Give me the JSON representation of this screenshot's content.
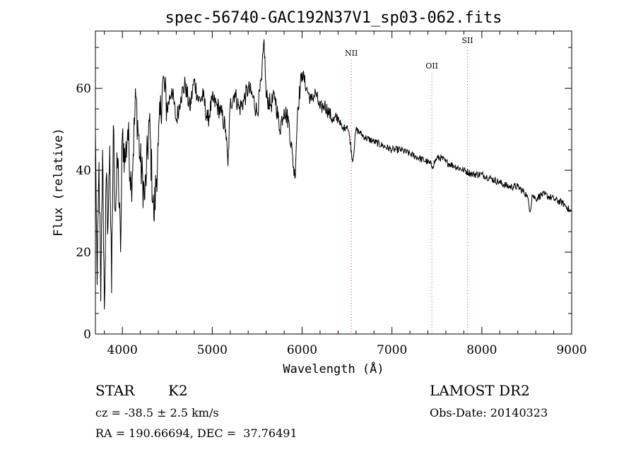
{
  "chart_data": {
    "type": "line",
    "title": "spec-56740-GAC192N37V1_sp03-062.fits",
    "xlabel": "Wavelength (Å)",
    "ylabel": "Flux (relative)",
    "xlim": [
      3700,
      9000
    ],
    "ylim": [
      0,
      74
    ],
    "xticks": [
      4000,
      5000,
      6000,
      7000,
      8000,
      9000
    ],
    "yticks": [
      0,
      20,
      40,
      60
    ],
    "grid": false,
    "series": [
      {
        "x": [
          3700,
          3720,
          3740,
          3760,
          3780,
          3800,
          3820,
          3840,
          3860,
          3880,
          3900,
          3920,
          3950,
          3980,
          4000,
          4030,
          4060,
          4100,
          4150,
          4200,
          4250,
          4300,
          4350,
          4400,
          4450,
          4500,
          4550,
          4600,
          4650,
          4700,
          4750,
          4800,
          4850,
          4900,
          4950,
          5000,
          5050,
          5100,
          5150,
          5175,
          5200,
          5250,
          5300,
          5350,
          5400,
          5450,
          5500,
          5550,
          5577,
          5600,
          5650,
          5700,
          5750,
          5800,
          5850,
          5890,
          5920,
          5950,
          6000,
          6050,
          6100,
          6150,
          6200,
          6250,
          6300,
          6350,
          6400,
          6450,
          6500,
          6530,
          6563,
          6600,
          6650,
          6700,
          6800,
          6900,
          7000,
          7100,
          7200,
          7300,
          7400,
          7450,
          7500,
          7550,
          7600,
          7700,
          7800,
          7900,
          8000,
          8100,
          8200,
          8300,
          8400,
          8500,
          8540,
          8560,
          8600,
          8660,
          8700,
          8800,
          8900,
          8950,
          8980,
          9000
        ],
        "y": [
          49,
          12,
          42,
          8,
          45,
          6,
          38,
          26,
          46,
          10,
          51,
          30,
          43,
          20,
          49,
          42,
          50,
          36,
          58,
          42,
          33,
          52,
          28,
          46,
          62,
          55,
          60,
          52,
          58,
          61,
          55,
          62,
          57,
          58,
          52,
          57,
          56,
          54,
          50,
          41,
          56,
          59,
          55,
          57,
          60,
          58,
          54,
          62,
          72,
          58,
          56,
          58,
          50,
          55,
          52,
          44,
          38,
          55,
          64,
          60,
          57,
          59,
          55,
          56,
          54,
          52,
          53,
          50,
          51,
          48,
          42,
          50,
          49,
          48,
          47,
          46,
          45,
          45,
          44,
          43,
          42,
          41,
          43,
          43,
          42,
          41,
          40,
          39,
          39,
          38,
          37,
          36,
          36,
          34,
          30,
          34,
          33,
          34,
          34,
          33,
          32,
          31,
          30,
          30
        ]
      }
    ],
    "annotations": [
      {
        "label": "NII",
        "x": 6548
      },
      {
        "label": "OII",
        "x": 7444
      },
      {
        "label": "SII",
        "x": 7840
      }
    ]
  },
  "footer": {
    "object_class": "STAR",
    "subclass": "K2",
    "survey": "LAMOST DR2",
    "cz": "cz = -38.5 ± 2.5 km/s",
    "obs_date": "Obs-Date: 20140323",
    "coords": "RA = 190.66694, DEC =  37.76491"
  }
}
